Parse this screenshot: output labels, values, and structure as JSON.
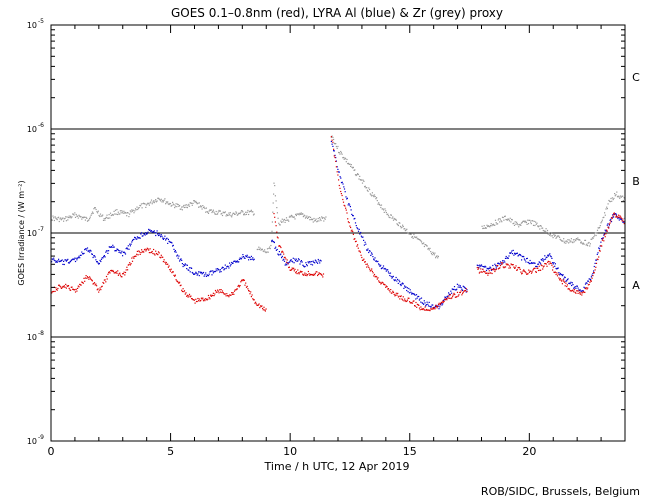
{
  "chart_data": {
    "type": "scatter",
    "title": "GOES 0.1–0.8nm (red), LYRA Al (blue) & Zr (grey) proxy",
    "xlabel": "Time / h UTC, 12 Apr 2019",
    "ylabel": "GOES Irradiance / (W m⁻²)",
    "xlim": [
      0,
      24
    ],
    "ylim_log10": [
      -9,
      -5
    ],
    "x_ticks": [
      0,
      5,
      10,
      15,
      20
    ],
    "x_tick_labels": [
      "0",
      "5",
      "10",
      "15",
      "20"
    ],
    "y_ticks_log10": [
      -9,
      -8,
      -7,
      -6,
      -5
    ],
    "y_tick_labels": [
      {
        "base": "10",
        "exp": "-9"
      },
      {
        "base": "10",
        "exp": "-8"
      },
      {
        "base": "10",
        "exp": "-7"
      },
      {
        "base": "10",
        "exp": "-6"
      },
      {
        "base": "10",
        "exp": "-5"
      }
    ],
    "flare_class_lines_log10": [
      -8,
      -7,
      -6
    ],
    "flare_classes": [
      {
        "label": "C",
        "log10": -5.5
      },
      {
        "label": "B",
        "log10": -6.5
      },
      {
        "label": "A",
        "log10": -7.5
      }
    ],
    "series": [
      {
        "name": "LYRA Zr (grey) proxy",
        "color": "#999999",
        "points": [
          [
            0,
            -6.85
          ],
          [
            0.5,
            -6.87
          ],
          [
            1,
            -6.82
          ],
          [
            1.5,
            -6.87
          ],
          [
            1.8,
            -6.76
          ],
          [
            2.2,
            -6.86
          ],
          [
            2.7,
            -6.79
          ],
          [
            3.2,
            -6.82
          ],
          [
            3.6,
            -6.75
          ],
          [
            4.0,
            -6.72
          ],
          [
            4.5,
            -6.66
          ],
          [
            5.0,
            -6.72
          ],
          [
            5.5,
            -6.75
          ],
          [
            6.0,
            -6.7
          ],
          [
            6.5,
            -6.78
          ],
          [
            7.0,
            -6.8
          ],
          [
            7.5,
            -6.82
          ],
          [
            8.0,
            -6.8
          ],
          [
            8.5,
            -6.8
          ],
          [
            null,
            null
          ],
          [
            8.6,
            -7.15
          ],
          [
            9.0,
            -7.18
          ],
          [
            9.2,
            -7.1
          ],
          [
            9.3,
            -6.5
          ],
          [
            9.5,
            -6.9
          ],
          [
            10.0,
            -6.85
          ],
          [
            10.5,
            -6.82
          ],
          [
            11.0,
            -6.88
          ],
          [
            11.5,
            -6.85
          ],
          [
            null,
            null
          ],
          [
            11.7,
            -6.05
          ],
          [
            12.0,
            -6.2
          ],
          [
            12.5,
            -6.35
          ],
          [
            13.0,
            -6.5
          ],
          [
            13.5,
            -6.65
          ],
          [
            14.0,
            -6.8
          ],
          [
            14.5,
            -6.9
          ],
          [
            15.0,
            -7.0
          ],
          [
            15.5,
            -7.1
          ],
          [
            16.0,
            -7.2
          ],
          [
            16.2,
            -7.25
          ],
          [
            null,
            null
          ],
          [
            18.0,
            -6.95
          ],
          [
            18.5,
            -6.9
          ],
          [
            19.0,
            -6.85
          ],
          [
            19.5,
            -6.92
          ],
          [
            20.0,
            -6.88
          ],
          [
            20.5,
            -6.95
          ],
          [
            21.0,
            -7.02
          ],
          [
            21.5,
            -7.08
          ],
          [
            22.0,
            -7.06
          ],
          [
            22.5,
            -7.1
          ],
          [
            23.0,
            -6.9
          ],
          [
            23.3,
            -6.7
          ],
          [
            23.6,
            -6.62
          ],
          [
            24.0,
            -6.68
          ]
        ]
      },
      {
        "name": "LYRA Al (blue) proxy",
        "color": "#0000cc",
        "points": [
          [
            0,
            -7.25
          ],
          [
            0.5,
            -7.28
          ],
          [
            1.0,
            -7.25
          ],
          [
            1.5,
            -7.15
          ],
          [
            2.0,
            -7.28
          ],
          [
            2.5,
            -7.12
          ],
          [
            3.0,
            -7.2
          ],
          [
            3.5,
            -7.05
          ],
          [
            4.0,
            -6.98
          ],
          [
            4.5,
            -7.0
          ],
          [
            5.0,
            -7.1
          ],
          [
            5.5,
            -7.3
          ],
          [
            6.0,
            -7.38
          ],
          [
            6.5,
            -7.4
          ],
          [
            7.0,
            -7.35
          ],
          [
            7.5,
            -7.3
          ],
          [
            8.0,
            -7.22
          ],
          [
            8.5,
            -7.25
          ],
          [
            null,
            null
          ],
          [
            9.2,
            -7.05
          ],
          [
            9.4,
            -7.15
          ],
          [
            9.8,
            -7.3
          ],
          [
            10.2,
            -7.25
          ],
          [
            10.6,
            -7.3
          ],
          [
            11.0,
            -7.28
          ],
          [
            11.3,
            -7.25
          ],
          [
            null,
            null
          ],
          [
            11.7,
            -6.1
          ],
          [
            12.0,
            -6.4
          ],
          [
            12.4,
            -6.7
          ],
          [
            12.8,
            -6.95
          ],
          [
            13.2,
            -7.15
          ],
          [
            13.7,
            -7.3
          ],
          [
            14.2,
            -7.4
          ],
          [
            14.7,
            -7.5
          ],
          [
            15.2,
            -7.6
          ],
          [
            15.7,
            -7.68
          ],
          [
            16.2,
            -7.7
          ],
          [
            16.6,
            -7.58
          ],
          [
            17.0,
            -7.5
          ],
          [
            17.4,
            -7.55
          ],
          [
            null,
            null
          ],
          [
            17.8,
            -7.3
          ],
          [
            18.3,
            -7.35
          ],
          [
            18.8,
            -7.28
          ],
          [
            19.3,
            -7.18
          ],
          [
            19.8,
            -7.25
          ],
          [
            20.3,
            -7.3
          ],
          [
            20.8,
            -7.2
          ],
          [
            21.3,
            -7.4
          ],
          [
            21.8,
            -7.5
          ],
          [
            22.2,
            -7.55
          ],
          [
            22.6,
            -7.4
          ],
          [
            23.0,
            -7.05
          ],
          [
            23.5,
            -6.82
          ],
          [
            24.0,
            -6.88
          ]
        ]
      },
      {
        "name": "GOES 0.1–0.8nm (red)",
        "color": "#dd0000",
        "points": [
          [
            0,
            -7.55
          ],
          [
            0.5,
            -7.5
          ],
          [
            1.0,
            -7.55
          ],
          [
            1.5,
            -7.4
          ],
          [
            2.0,
            -7.55
          ],
          [
            2.5,
            -7.35
          ],
          [
            3.0,
            -7.4
          ],
          [
            3.5,
            -7.2
          ],
          [
            4.0,
            -7.15
          ],
          [
            4.5,
            -7.2
          ],
          [
            5.0,
            -7.35
          ],
          [
            5.5,
            -7.55
          ],
          [
            6.0,
            -7.65
          ],
          [
            6.5,
            -7.62
          ],
          [
            7.0,
            -7.55
          ],
          [
            7.5,
            -7.6
          ],
          [
            8.0,
            -7.45
          ],
          [
            8.5,
            -7.65
          ],
          [
            9.0,
            -7.75
          ],
          [
            null,
            null
          ],
          [
            9.3,
            -6.8
          ],
          [
            9.5,
            -7.1
          ],
          [
            10.0,
            -7.35
          ],
          [
            10.5,
            -7.38
          ],
          [
            11.0,
            -7.38
          ],
          [
            11.4,
            -7.4
          ],
          [
            null,
            null
          ],
          [
            11.7,
            -6.05
          ],
          [
            12.0,
            -6.5
          ],
          [
            12.5,
            -6.95
          ],
          [
            13.0,
            -7.25
          ],
          [
            13.5,
            -7.4
          ],
          [
            14.0,
            -7.52
          ],
          [
            14.5,
            -7.6
          ],
          [
            15.0,
            -7.65
          ],
          [
            15.5,
            -7.72
          ],
          [
            16.0,
            -7.72
          ],
          [
            16.5,
            -7.62
          ],
          [
            17.0,
            -7.58
          ],
          [
            17.4,
            -7.55
          ],
          [
            null,
            null
          ],
          [
            17.8,
            -7.35
          ],
          [
            18.3,
            -7.38
          ],
          [
            18.8,
            -7.3
          ],
          [
            19.3,
            -7.32
          ],
          [
            19.8,
            -7.38
          ],
          [
            20.3,
            -7.35
          ],
          [
            20.8,
            -7.28
          ],
          [
            21.3,
            -7.45
          ],
          [
            21.8,
            -7.55
          ],
          [
            22.2,
            -7.58
          ],
          [
            22.6,
            -7.45
          ],
          [
            23.0,
            -7.1
          ],
          [
            23.5,
            -6.8
          ],
          [
            24.0,
            -6.9
          ]
        ]
      }
    ]
  },
  "footer": {
    "credit": "ROB/SIDC, Brussels, Belgium"
  }
}
